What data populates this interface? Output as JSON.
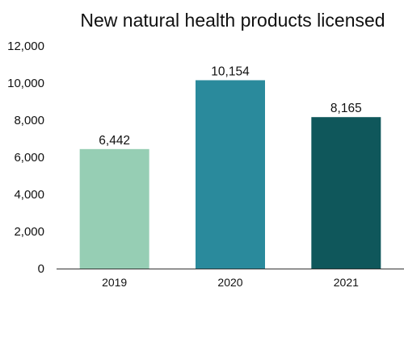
{
  "chart_data": {
    "type": "bar",
    "title": "New natural health products licensed",
    "xlabel": "",
    "ylabel": "",
    "categories": [
      "2019",
      "2020",
      "2021"
    ],
    "values": [
      6442,
      10154,
      8165
    ],
    "data_labels": [
      "6,442",
      "10,154",
      "8,165"
    ],
    "bar_colors": [
      "#96ceb4",
      "#2a8a9c",
      "#0f575b"
    ],
    "ylim": [
      0,
      12000
    ],
    "yticks": [
      0,
      2000,
      4000,
      6000,
      8000,
      10000,
      12000
    ],
    "ytick_labels": [
      "0",
      "2,000",
      "4,000",
      "6,000",
      "8,000",
      "10,000",
      "12,000"
    ],
    "grid": false,
    "legend": "none"
  }
}
